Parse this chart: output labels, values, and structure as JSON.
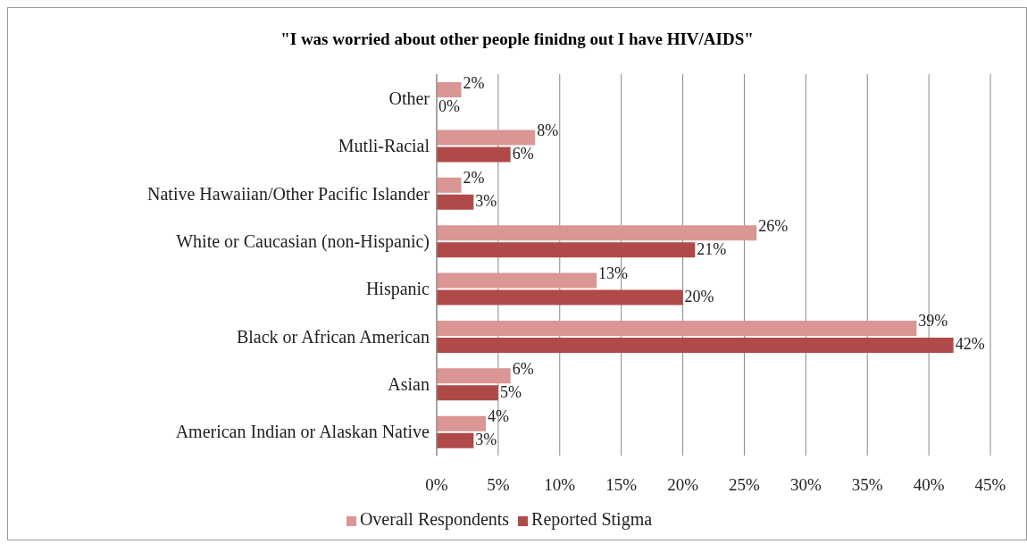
{
  "chart_data": {
    "type": "bar",
    "orientation": "horizontal",
    "title": "\"I was worried about other people finidng out I have HIV/AIDS\"",
    "categories": [
      "Other",
      "Mutli-Racial",
      "Native Hawaiian/Other Pacific Islander",
      "White or Caucasian (non-Hispanic)",
      "Hispanic",
      "Black or African American",
      "Asian",
      "American Indian or Alaskan Native"
    ],
    "series": [
      {
        "name": "Overall Respondents",
        "color": "#d99694",
        "values": [
          2,
          8,
          2,
          26,
          13,
          39,
          6,
          4
        ],
        "value_labels": [
          "2%",
          "8%",
          "2%",
          "26%",
          "13%",
          "39%",
          "6%",
          "4%"
        ]
      },
      {
        "name": "Reported Stigma",
        "color": "#b04a48",
        "values": [
          0,
          6,
          3,
          21,
          20,
          42,
          5,
          3
        ],
        "value_labels": [
          "0%",
          "6%",
          "3%",
          "21%",
          "20%",
          "42%",
          "5%",
          "3%"
        ]
      }
    ],
    "xlim": [
      0,
      45
    ],
    "xticks": [
      {
        "value": 0,
        "label": "0%"
      },
      {
        "value": 5,
        "label": "5%"
      },
      {
        "value": 10,
        "label": "10%"
      },
      {
        "value": 15,
        "label": "15%"
      },
      {
        "value": 20,
        "label": "20%"
      },
      {
        "value": 25,
        "label": "25%"
      },
      {
        "value": 30,
        "label": "30%"
      },
      {
        "value": 35,
        "label": "35%"
      },
      {
        "value": 40,
        "label": "40%"
      },
      {
        "value": 45,
        "label": "45%"
      }
    ],
    "grid": "x",
    "legend": "bottom"
  }
}
